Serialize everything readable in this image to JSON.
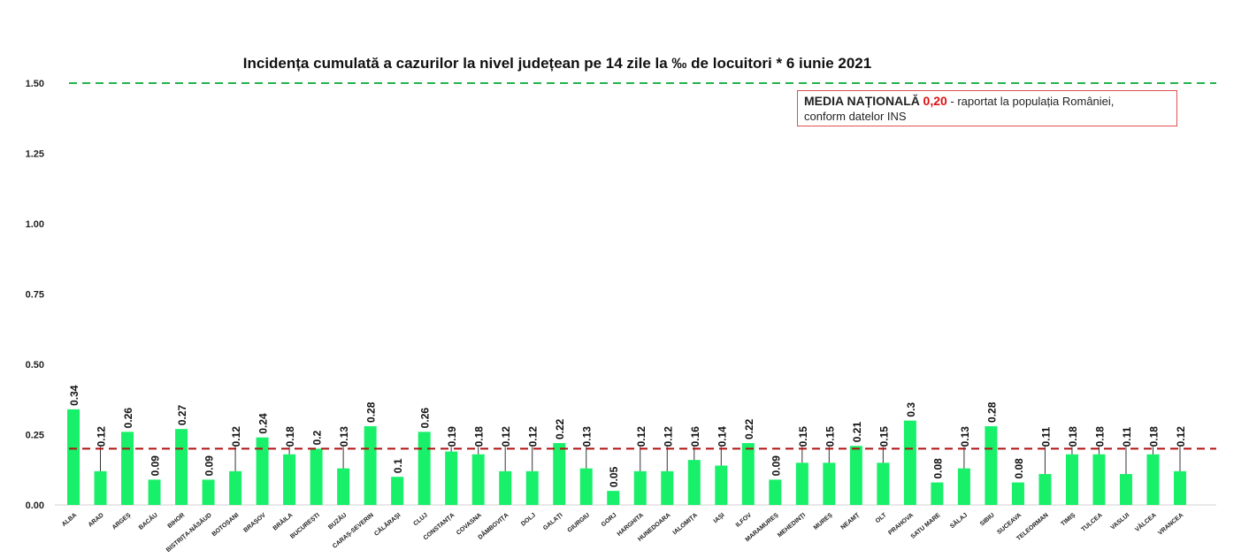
{
  "chart_data": {
    "type": "bar",
    "title": "Incidența cumulată a cazurilor la nivel județean pe 14 zile la ‰ de locuitori *  6 iunie 2021",
    "xlabel": "",
    "ylabel": "",
    "ylim": [
      0,
      1.5
    ],
    "yticks": [
      "0.00",
      "0.25",
      "0.50",
      "0.75",
      "1.00",
      "1.25",
      "1.50"
    ],
    "grid": false,
    "reference_lines": [
      {
        "name": "threshold",
        "value": 1.5,
        "color": "#22b24c",
        "style": "dashed"
      },
      {
        "name": "media nationala",
        "value": 0.2,
        "color": "#b01010",
        "style": "dashed"
      }
    ],
    "bar_color": "#19f06a",
    "categories": [
      "ALBA",
      "ARAD",
      "ARGEȘ",
      "BACĂU",
      "BIHOR",
      "BISTRIȚA-NĂSĂUD",
      "BOTOȘANI",
      "BRAȘOV",
      "BRĂILA",
      "BUCUREȘTI",
      "BUZĂU",
      "CARAȘ-SEVERIN",
      "CĂLĂRAȘI",
      "CLUJ",
      "CONSTANȚA",
      "COVASNA",
      "DÂMBOVIȚA",
      "DOLJ",
      "GALAȚI",
      "GIURGIU",
      "GORJ",
      "HARGHITA",
      "HUNEDOARA",
      "IALOMIȚA",
      "IAȘI",
      "ILFOV",
      "MARAMUREȘ",
      "MEHEDINȚI",
      "MUREȘ",
      "NEAMȚ",
      "OLT",
      "PRAHOVA",
      "SATU MARE",
      "SĂLAJ",
      "SIBIU",
      "SUCEAVA",
      "TELEORMAN",
      "TIMIȘ",
      "TULCEA",
      "VASLUI",
      "VÂLCEA",
      "VRANCEA"
    ],
    "values": [
      0.34,
      0.12,
      0.26,
      0.09,
      0.27,
      0.09,
      0.12,
      0.24,
      0.18,
      0.2,
      0.13,
      0.28,
      0.1,
      0.26,
      0.19,
      0.18,
      0.12,
      0.12,
      0.22,
      0.13,
      0.05,
      0.12,
      0.12,
      0.16,
      0.14,
      0.22,
      0.09,
      0.15,
      0.15,
      0.21,
      0.15,
      0.3,
      0.08,
      0.13,
      0.28,
      0.08,
      0.11,
      0.18,
      0.18,
      0.11,
      0.18,
      0.12
    ],
    "data_labels": [
      "0.34",
      "0.12",
      "0.26",
      "0.09",
      "0.27",
      "0.09",
      "0.12",
      "0.24",
      "0.18",
      "0.2",
      "0.13",
      "0.28",
      "0.1",
      "0.26",
      "0.19",
      "0.18",
      "0.12",
      "0.12",
      "0.22",
      "0.13",
      "0.05",
      "0.12",
      "0.12",
      "0.16",
      "0.14",
      "0.22",
      "0.09",
      "0.15",
      "0.15",
      "0.21",
      "0.15",
      "0.3",
      "0.08",
      "0.13",
      "0.28",
      "0.08",
      "0.11",
      "0.18",
      "0.18",
      "0.11",
      "0.18",
      "0.12"
    ]
  },
  "legend": {
    "heading": "MEDIA NAȚIONALĂ",
    "value": "0,20",
    "text": " - raportat la populația României,",
    "text2": "conform datelor INS"
  }
}
